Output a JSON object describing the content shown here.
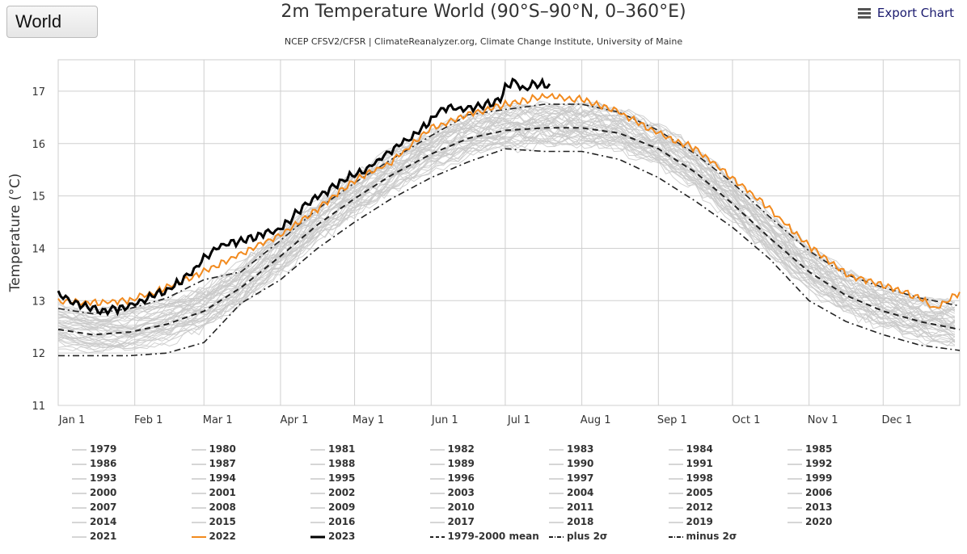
{
  "region_selector": {
    "value": "World"
  },
  "title": "2m Temperature World (90°S–90°N, 0–360°E)",
  "subtitle": "NCEP CFSV2/CFSR | ClimateReanalyzer.org, Climate Change Institute, University of Maine",
  "export_label": "Export Chart",
  "colors": {
    "other_years": "#c9c9c9",
    "y2022": "#f28a1e",
    "y2023": "#000000",
    "dashed": "#222222",
    "grid": "#cfcfcf"
  },
  "chart_data": {
    "type": "line",
    "title": "2m Temperature World (90°S–90°N, 0–360°E)",
    "ylabel": "Temperature (°C)",
    "xlabel": "",
    "ylim": [
      11,
      17.6
    ],
    "xlim_days": [
      1,
      366
    ],
    "y_ticks": [
      11,
      12,
      13,
      14,
      15,
      16,
      17
    ],
    "x_ticks": [
      {
        "label": "Jan 1",
        "day": 1
      },
      {
        "label": "Feb 1",
        "day": 32
      },
      {
        "label": "Mar 1",
        "day": 60
      },
      {
        "label": "Apr 1",
        "day": 91
      },
      {
        "label": "May 1",
        "day": 121
      },
      {
        "label": "Jun 1",
        "day": 152
      },
      {
        "label": "Jul 1",
        "day": 182
      },
      {
        "label": "Aug 1",
        "day": 213
      },
      {
        "label": "Sep 1",
        "day": 244
      },
      {
        "label": "Oct 1",
        "day": 274
      },
      {
        "label": "Nov 1",
        "day": 305
      },
      {
        "label": "Dec 1",
        "day": 335
      }
    ],
    "grid": true,
    "series": [
      {
        "name": "1979-2000 mean",
        "style": "dashed",
        "x": [
          1,
          15,
          30,
          45,
          60,
          75,
          91,
          106,
          121,
          136,
          152,
          167,
          182,
          198,
          213,
          228,
          244,
          259,
          274,
          289,
          305,
          320,
          335,
          350,
          366
        ],
        "values": [
          12.45,
          12.35,
          12.4,
          12.55,
          12.8,
          13.25,
          13.85,
          14.45,
          14.95,
          15.4,
          15.8,
          16.1,
          16.25,
          16.3,
          16.3,
          16.2,
          15.9,
          15.45,
          14.85,
          14.2,
          13.55,
          13.1,
          12.8,
          12.6,
          12.45
        ]
      },
      {
        "name": "plus 2σ",
        "style": "dashdot",
        "x": [
          1,
          15,
          30,
          45,
          60,
          75,
          91,
          106,
          121,
          136,
          152,
          167,
          182,
          198,
          213,
          228,
          244,
          259,
          274,
          289,
          305,
          320,
          335,
          350,
          366
        ],
        "values": [
          12.85,
          12.75,
          12.85,
          13.05,
          13.4,
          13.55,
          14.15,
          14.75,
          15.25,
          15.7,
          16.15,
          16.55,
          16.65,
          16.75,
          16.75,
          16.6,
          16.25,
          15.8,
          15.25,
          14.6,
          13.95,
          13.5,
          13.25,
          13.05,
          12.9
        ]
      },
      {
        "name": "minus 2σ",
        "style": "dashdot",
        "x": [
          1,
          15,
          30,
          45,
          60,
          75,
          91,
          106,
          121,
          136,
          152,
          167,
          182,
          198,
          213,
          228,
          244,
          259,
          274,
          289,
          305,
          320,
          335,
          350,
          366
        ],
        "values": [
          11.95,
          11.95,
          11.95,
          12.0,
          12.2,
          12.95,
          13.4,
          14.0,
          14.5,
          14.95,
          15.35,
          15.65,
          15.9,
          15.85,
          15.85,
          15.7,
          15.35,
          14.9,
          14.4,
          13.8,
          13.0,
          12.6,
          12.35,
          12.15,
          12.05
        ]
      },
      {
        "name": "2022",
        "style": "solid",
        "x": [
          1,
          15,
          30,
          45,
          60,
          75,
          91,
          106,
          121,
          136,
          152,
          167,
          182,
          198,
          213,
          228,
          244,
          259,
          274,
          289,
          305,
          320,
          335,
          350,
          356,
          366
        ],
        "values": [
          13.0,
          12.95,
          13.0,
          13.25,
          13.55,
          13.9,
          14.25,
          14.75,
          15.3,
          15.65,
          16.3,
          16.55,
          16.75,
          16.9,
          16.85,
          16.6,
          16.2,
          15.9,
          15.35,
          14.75,
          14.05,
          13.5,
          13.3,
          13.05,
          12.85,
          13.15
        ]
      },
      {
        "name": "2023",
        "style": "bold",
        "x": [
          1,
          5,
          10,
          15,
          20,
          25,
          30,
          35,
          40,
          45,
          50,
          55,
          60,
          65,
          70,
          75,
          80,
          85,
          90,
          95,
          100,
          105,
          110,
          115,
          120,
          125,
          130,
          135,
          140,
          145,
          150,
          155,
          160,
          165,
          170,
          175,
          180,
          182,
          185,
          190,
          195,
          200
        ],
        "values": [
          13.15,
          13.0,
          12.9,
          12.85,
          12.8,
          12.85,
          12.9,
          13.0,
          13.1,
          13.2,
          13.35,
          13.55,
          13.8,
          14.0,
          14.1,
          14.15,
          14.2,
          14.3,
          14.35,
          14.55,
          14.8,
          14.95,
          15.1,
          15.25,
          15.4,
          15.5,
          15.65,
          15.85,
          16.0,
          16.15,
          16.35,
          16.6,
          16.7,
          16.65,
          16.7,
          16.75,
          16.85,
          17.05,
          17.2,
          17.05,
          17.15,
          17.1
        ]
      }
    ],
    "other_years_note": "Each year 1979–2021 drawn as thin light-grey line",
    "legend": [
      "1979",
      "1980",
      "1981",
      "1982",
      "1983",
      "1984",
      "1985",
      "1986",
      "1987",
      "1988",
      "1989",
      "1990",
      "1991",
      "1992",
      "1993",
      "1994",
      "1995",
      "1996",
      "1997",
      "1998",
      "1999",
      "2000",
      "2001",
      "2002",
      "2003",
      "2004",
      "2005",
      "2006",
      "2007",
      "2008",
      "2009",
      "2010",
      "2011",
      "2012",
      "2013",
      "2014",
      "2015",
      "2016",
      "2017",
      "2018",
      "2019",
      "2020",
      "2021",
      "2022",
      "2023",
      "1979-2000 mean",
      "plus 2σ",
      "minus 2σ"
    ]
  }
}
